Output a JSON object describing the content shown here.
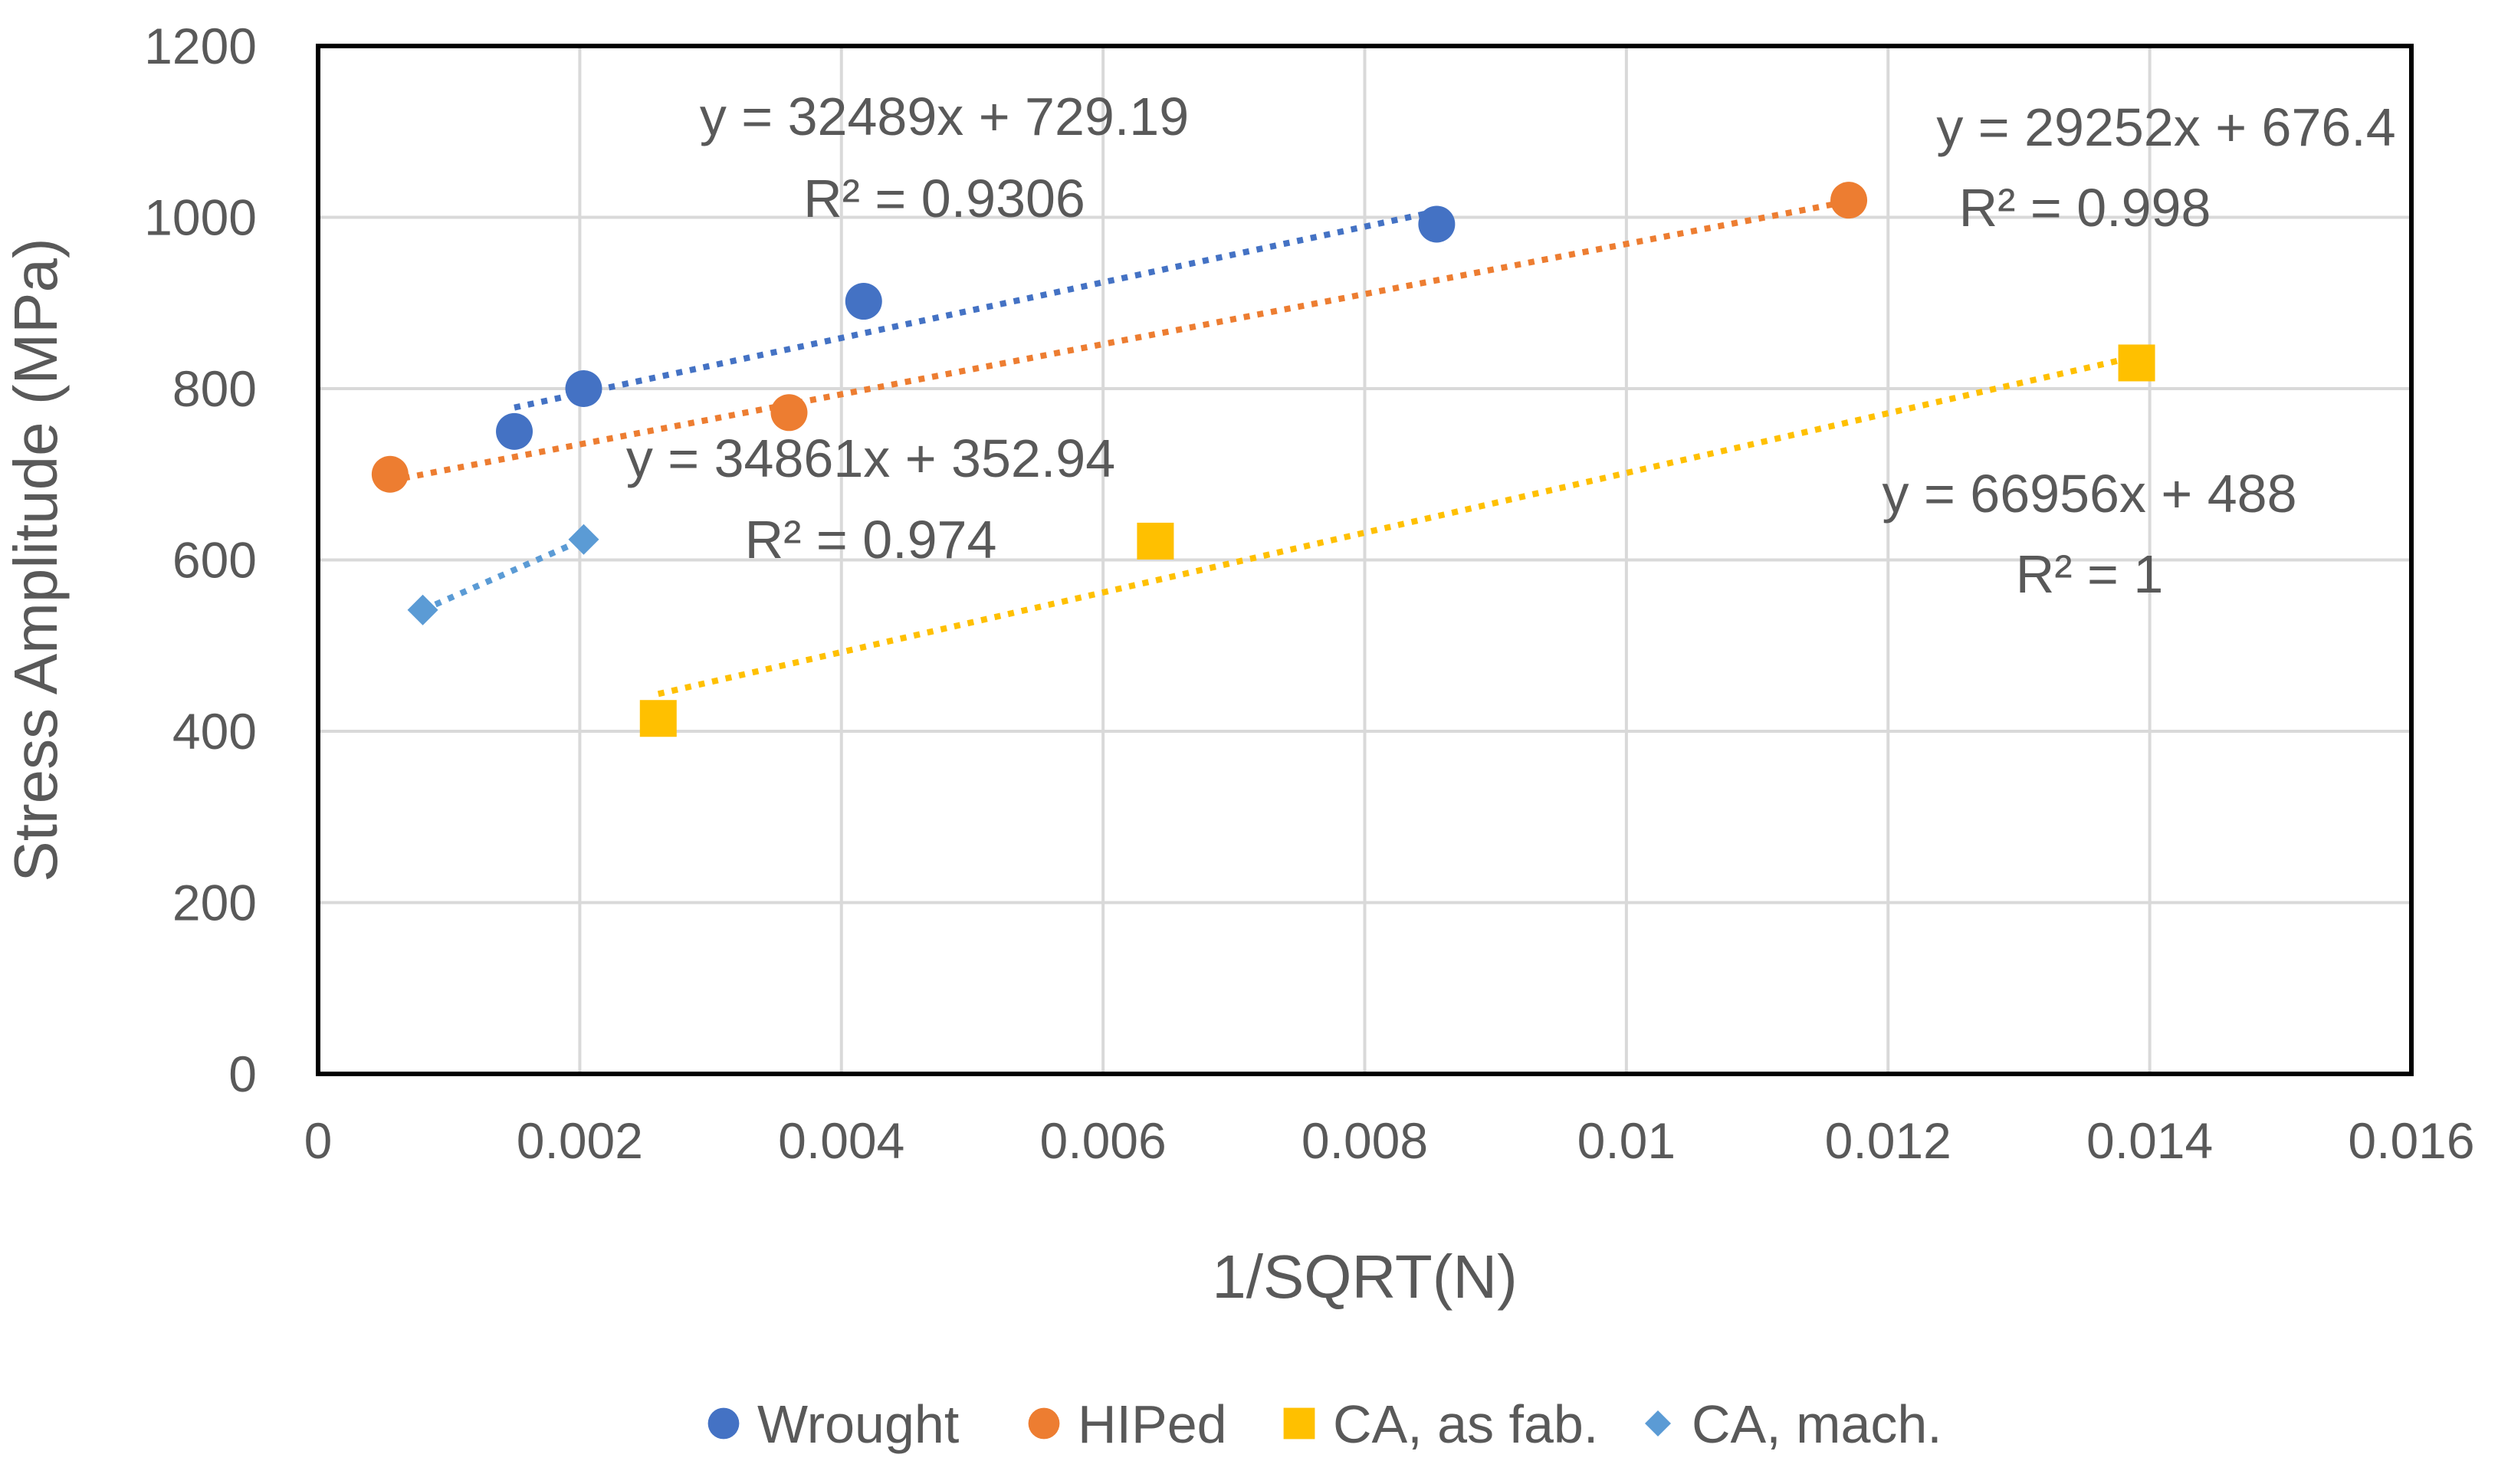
{
  "chart_data": {
    "type": "scatter",
    "title": "",
    "xlabel": "1/SQRT(N)",
    "ylabel": "Stress Amplitude (MPa)",
    "xlim": [
      0,
      0.016
    ],
    "ylim": [
      0,
      1200
    ],
    "x_ticks": [
      0,
      0.002,
      0.004,
      0.006,
      0.008,
      0.01,
      0.012,
      0.014,
      0.016
    ],
    "x_tick_labels": [
      "0",
      "0.002",
      "0.004",
      "0.006",
      "0.008",
      "0.01",
      "0.012",
      "0.014",
      "0.016"
    ],
    "y_ticks": [
      0,
      200,
      400,
      600,
      800,
      1000,
      1200
    ],
    "y_tick_labels": [
      "0",
      "200",
      "400",
      "600",
      "800",
      "1000",
      "1200"
    ],
    "grid": true,
    "legend_position": "bottom",
    "series": [
      {
        "name": "Wrought",
        "marker": "circle",
        "color": "#4472C4",
        "points": [
          [
            0.0015,
            750
          ],
          [
            0.00203,
            800
          ],
          [
            0.00417,
            902
          ],
          [
            0.00855,
            992
          ]
        ],
        "trendline": {
          "slope": 32489,
          "intercept": 729.19,
          "x_range": [
            0.0015,
            0.00855
          ],
          "equation": "y = 32489x + 729.19",
          "r2": "R² = 0.9306"
        }
      },
      {
        "name": "HIPed",
        "marker": "circle",
        "color": "#ED7D31",
        "points": [
          [
            0.00055,
            700
          ],
          [
            0.0036,
            772
          ],
          [
            0.0117,
            1020
          ]
        ],
        "trendline": {
          "slope": 29252,
          "intercept": 676.4,
          "x_range": [
            0.00055,
            0.0117
          ],
          "equation": "y = 29252x + 676.4",
          "r2": "R² = 0.998"
        }
      },
      {
        "name": "CA, as fab.",
        "marker": "square",
        "color": "#FFC000",
        "points": [
          [
            0.0026,
            415
          ],
          [
            0.0064,
            622
          ],
          [
            0.0139,
            830
          ]
        ],
        "trendline": {
          "slope": 34861,
          "intercept": 352.94,
          "x_range": [
            0.0026,
            0.0139
          ],
          "equation": "y = 34861x + 352.94",
          "r2": "R² = 0.974"
        }
      },
      {
        "name": "CA, mach.",
        "marker": "diamond",
        "color": "#5B9BD5",
        "points": [
          [
            0.0008,
            541.6
          ],
          [
            0.00203,
            623.9
          ]
        ],
        "trendline": {
          "slope": 66956,
          "intercept": 488,
          "x_range": [
            0.0008,
            0.00203
          ],
          "equation": "y = 66956x + 488",
          "r2": "R² = 1"
        }
      }
    ]
  }
}
